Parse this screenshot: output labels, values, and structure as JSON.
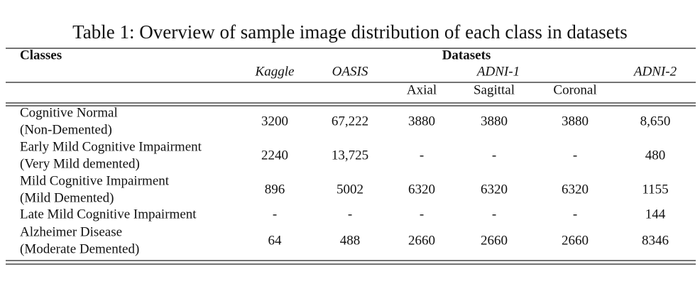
{
  "table": {
    "title": "Table 1: Overview of sample image distribution of each class in datasets",
    "header": {
      "classes": "Classes",
      "datasets": "Datasets",
      "datasets_names": [
        "Kaggle",
        "OASIS",
        "ADNI-1",
        "ADNI-2"
      ],
      "views": [
        "Axial",
        "Sagittal",
        "Coronal"
      ]
    },
    "rows": [
      {
        "label": [
          "Cognitive Normal",
          "(Non-Demented)"
        ],
        "cells": [
          "3200",
          "67,222",
          "3880",
          "3880",
          "3880",
          "8,650"
        ]
      },
      {
        "label": [
          "Early Mild Cognitive Impairment",
          "(Very Mild demented)"
        ],
        "cells": [
          "2240",
          "13,725",
          "-",
          "-",
          "-",
          "480"
        ]
      },
      {
        "label": [
          "Mild Cognitive Impairment",
          "(Mild Demented)"
        ],
        "cells": [
          "896",
          "5002",
          "6320",
          "6320",
          "6320",
          "1155"
        ]
      },
      {
        "label": [
          "Late Mild Cognitive Impairment"
        ],
        "cells": [
          "-",
          "-",
          "-",
          "-",
          "-",
          "144"
        ]
      },
      {
        "label": [
          "Alzheimer Disease",
          "(Moderate Demented)"
        ],
        "cells": [
          "64",
          "488",
          "2660",
          "2660",
          "2660",
          "8346"
        ]
      }
    ]
  }
}
